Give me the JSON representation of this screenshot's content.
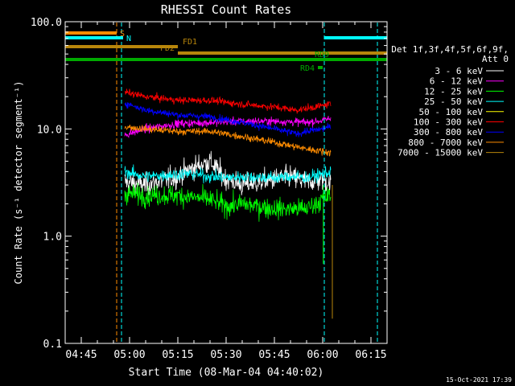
{
  "chart_data": {
    "type": "line",
    "title": "RHESSI Count Rates",
    "xlabel": "Start Time (08-Mar-04 04:40:02)",
    "ylabel": "Count Rate (s⁻¹ detector segment⁻¹)",
    "x_range_minutes": [
      280,
      380
    ],
    "ylim": [
      0.1,
      100.0
    ],
    "y_scale": "log",
    "grid": false,
    "x_ticks": [
      "04:45",
      "05:00",
      "05:15",
      "05:30",
      "05:45",
      "06:00",
      "06:15"
    ],
    "x_tick_minutes": [
      285,
      300,
      315,
      330,
      345,
      360,
      375
    ],
    "y_ticks": [
      "0.1",
      "1.0",
      "10.0",
      "100.0"
    ],
    "y_tick_values": [
      0.1,
      1.0,
      10.0,
      100.0
    ],
    "legend_header": [
      "Det 1f,3f,4f,5f,6f,9f,",
      "Att 0"
    ],
    "legend_position": "right",
    "series": [
      {
        "name": "3 - 6 keV",
        "color": "#ffffff",
        "points": [
          [
            298.5,
            3.2
          ],
          [
            305,
            3.0
          ],
          [
            315,
            3.6
          ],
          [
            320,
            4.4
          ],
          [
            325,
            5.0
          ],
          [
            330,
            3.4
          ],
          [
            335,
            3.0
          ],
          [
            345,
            3.4
          ],
          [
            350,
            3.6
          ],
          [
            355,
            3.2
          ],
          [
            360,
            3.4
          ],
          [
            362.5,
            3.0
          ]
        ]
      },
      {
        "name": "6 - 12 keV",
        "color": "#ff00ff",
        "points": [
          [
            298.5,
            8.8
          ],
          [
            305,
            10.0
          ],
          [
            315,
            11.2
          ],
          [
            325,
            11.5
          ],
          [
            335,
            11.8
          ],
          [
            345,
            11.8
          ],
          [
            355,
            11.5
          ],
          [
            360,
            12.0
          ],
          [
            362.5,
            12.5
          ]
        ]
      },
      {
        "name": "12 - 25 keV",
        "color": "#00ff00",
        "points": [
          [
            298.5,
            2.5
          ],
          [
            305,
            2.4
          ],
          [
            315,
            2.4
          ],
          [
            325,
            2.2
          ],
          [
            330,
            1.9
          ],
          [
            335,
            2.0
          ],
          [
            345,
            1.8
          ],
          [
            350,
            1.8
          ],
          [
            355,
            1.8
          ],
          [
            360,
            2.2
          ],
          [
            362.5,
            2.4
          ]
        ]
      },
      {
        "name": "25 - 50 keV",
        "color": "#00ffff",
        "points": [
          [
            298.5,
            4.0
          ],
          [
            305,
            3.6
          ],
          [
            315,
            3.8
          ],
          [
            320,
            3.8
          ],
          [
            325,
            3.6
          ],
          [
            330,
            3.5
          ],
          [
            335,
            3.6
          ],
          [
            345,
            3.5
          ],
          [
            350,
            3.6
          ],
          [
            355,
            3.5
          ],
          [
            360,
            3.8
          ],
          [
            362.5,
            4.0
          ]
        ]
      },
      {
        "name": "50 - 100 keV",
        "color": "#ffff00",
        "points": []
      },
      {
        "name": "100 - 300 keV",
        "color": "#ff0000",
        "points": [
          [
            298.5,
            22.0
          ],
          [
            305,
            20.0
          ],
          [
            315,
            18.5
          ],
          [
            325,
            18.5
          ],
          [
            335,
            17.0
          ],
          [
            345,
            16.0
          ],
          [
            352,
            15.0
          ],
          [
            355,
            15.5
          ],
          [
            360,
            16.5
          ],
          [
            362.5,
            17.0
          ]
        ]
      },
      {
        "name": "300 - 800 keV",
        "color": "#0000ff",
        "points": [
          [
            298.5,
            17.5
          ],
          [
            305,
            15.0
          ],
          [
            315,
            13.5
          ],
          [
            325,
            13.0
          ],
          [
            335,
            11.5
          ],
          [
            345,
            10.0
          ],
          [
            352,
            9.0
          ],
          [
            355,
            9.5
          ],
          [
            360,
            10.0
          ],
          [
            362.5,
            10.5
          ]
        ]
      },
      {
        "name": "800 - 7000 keV",
        "color": "#ff8c00",
        "points": [
          [
            298.5,
            10.5
          ],
          [
            305,
            10.0
          ],
          [
            315,
            9.5
          ],
          [
            325,
            9.5
          ],
          [
            335,
            8.5
          ],
          [
            345,
            7.5
          ],
          [
            352,
            6.8
          ],
          [
            355,
            6.5
          ],
          [
            360,
            6.2
          ],
          [
            362.5,
            6.0
          ]
        ]
      },
      {
        "name": "7000 - 15000 keV",
        "color": "#b8860b",
        "points": []
      }
    ],
    "flag_bars": [
      {
        "label": "S",
        "color": "#ff8c00",
        "segments": [
          [
            280,
            296
          ]
        ]
      },
      {
        "label": "N",
        "color": "#00ffff",
        "segments": [
          [
            280,
            298
          ],
          [
            360.5,
            380
          ]
        ]
      },
      {
        "label": "FD1",
        "color": "#b8860b",
        "segments": [
          [
            280,
            315
          ]
        ]
      },
      {
        "label": "FD2",
        "color": "#b8860b",
        "segments": [
          [
            315,
            380
          ]
        ]
      },
      {
        "label": "RD9",
        "color": "#00aa00",
        "segments": [
          [
            280,
            380
          ]
        ]
      },
      {
        "label": "RD4",
        "color": "#00aa00",
        "segments": [
          [
            358.5,
            360
          ]
        ]
      }
    ],
    "vertical_lines": [
      {
        "minute": 296,
        "color": "#ff8c00"
      },
      {
        "minute": 297.5,
        "color": "#00ffff"
      },
      {
        "minute": 360.5,
        "color": "#00ffff"
      },
      {
        "minute": 377,
        "color": "#00ffff"
      }
    ]
  },
  "footer_timestamp": "15-Oct-2021 17:39"
}
